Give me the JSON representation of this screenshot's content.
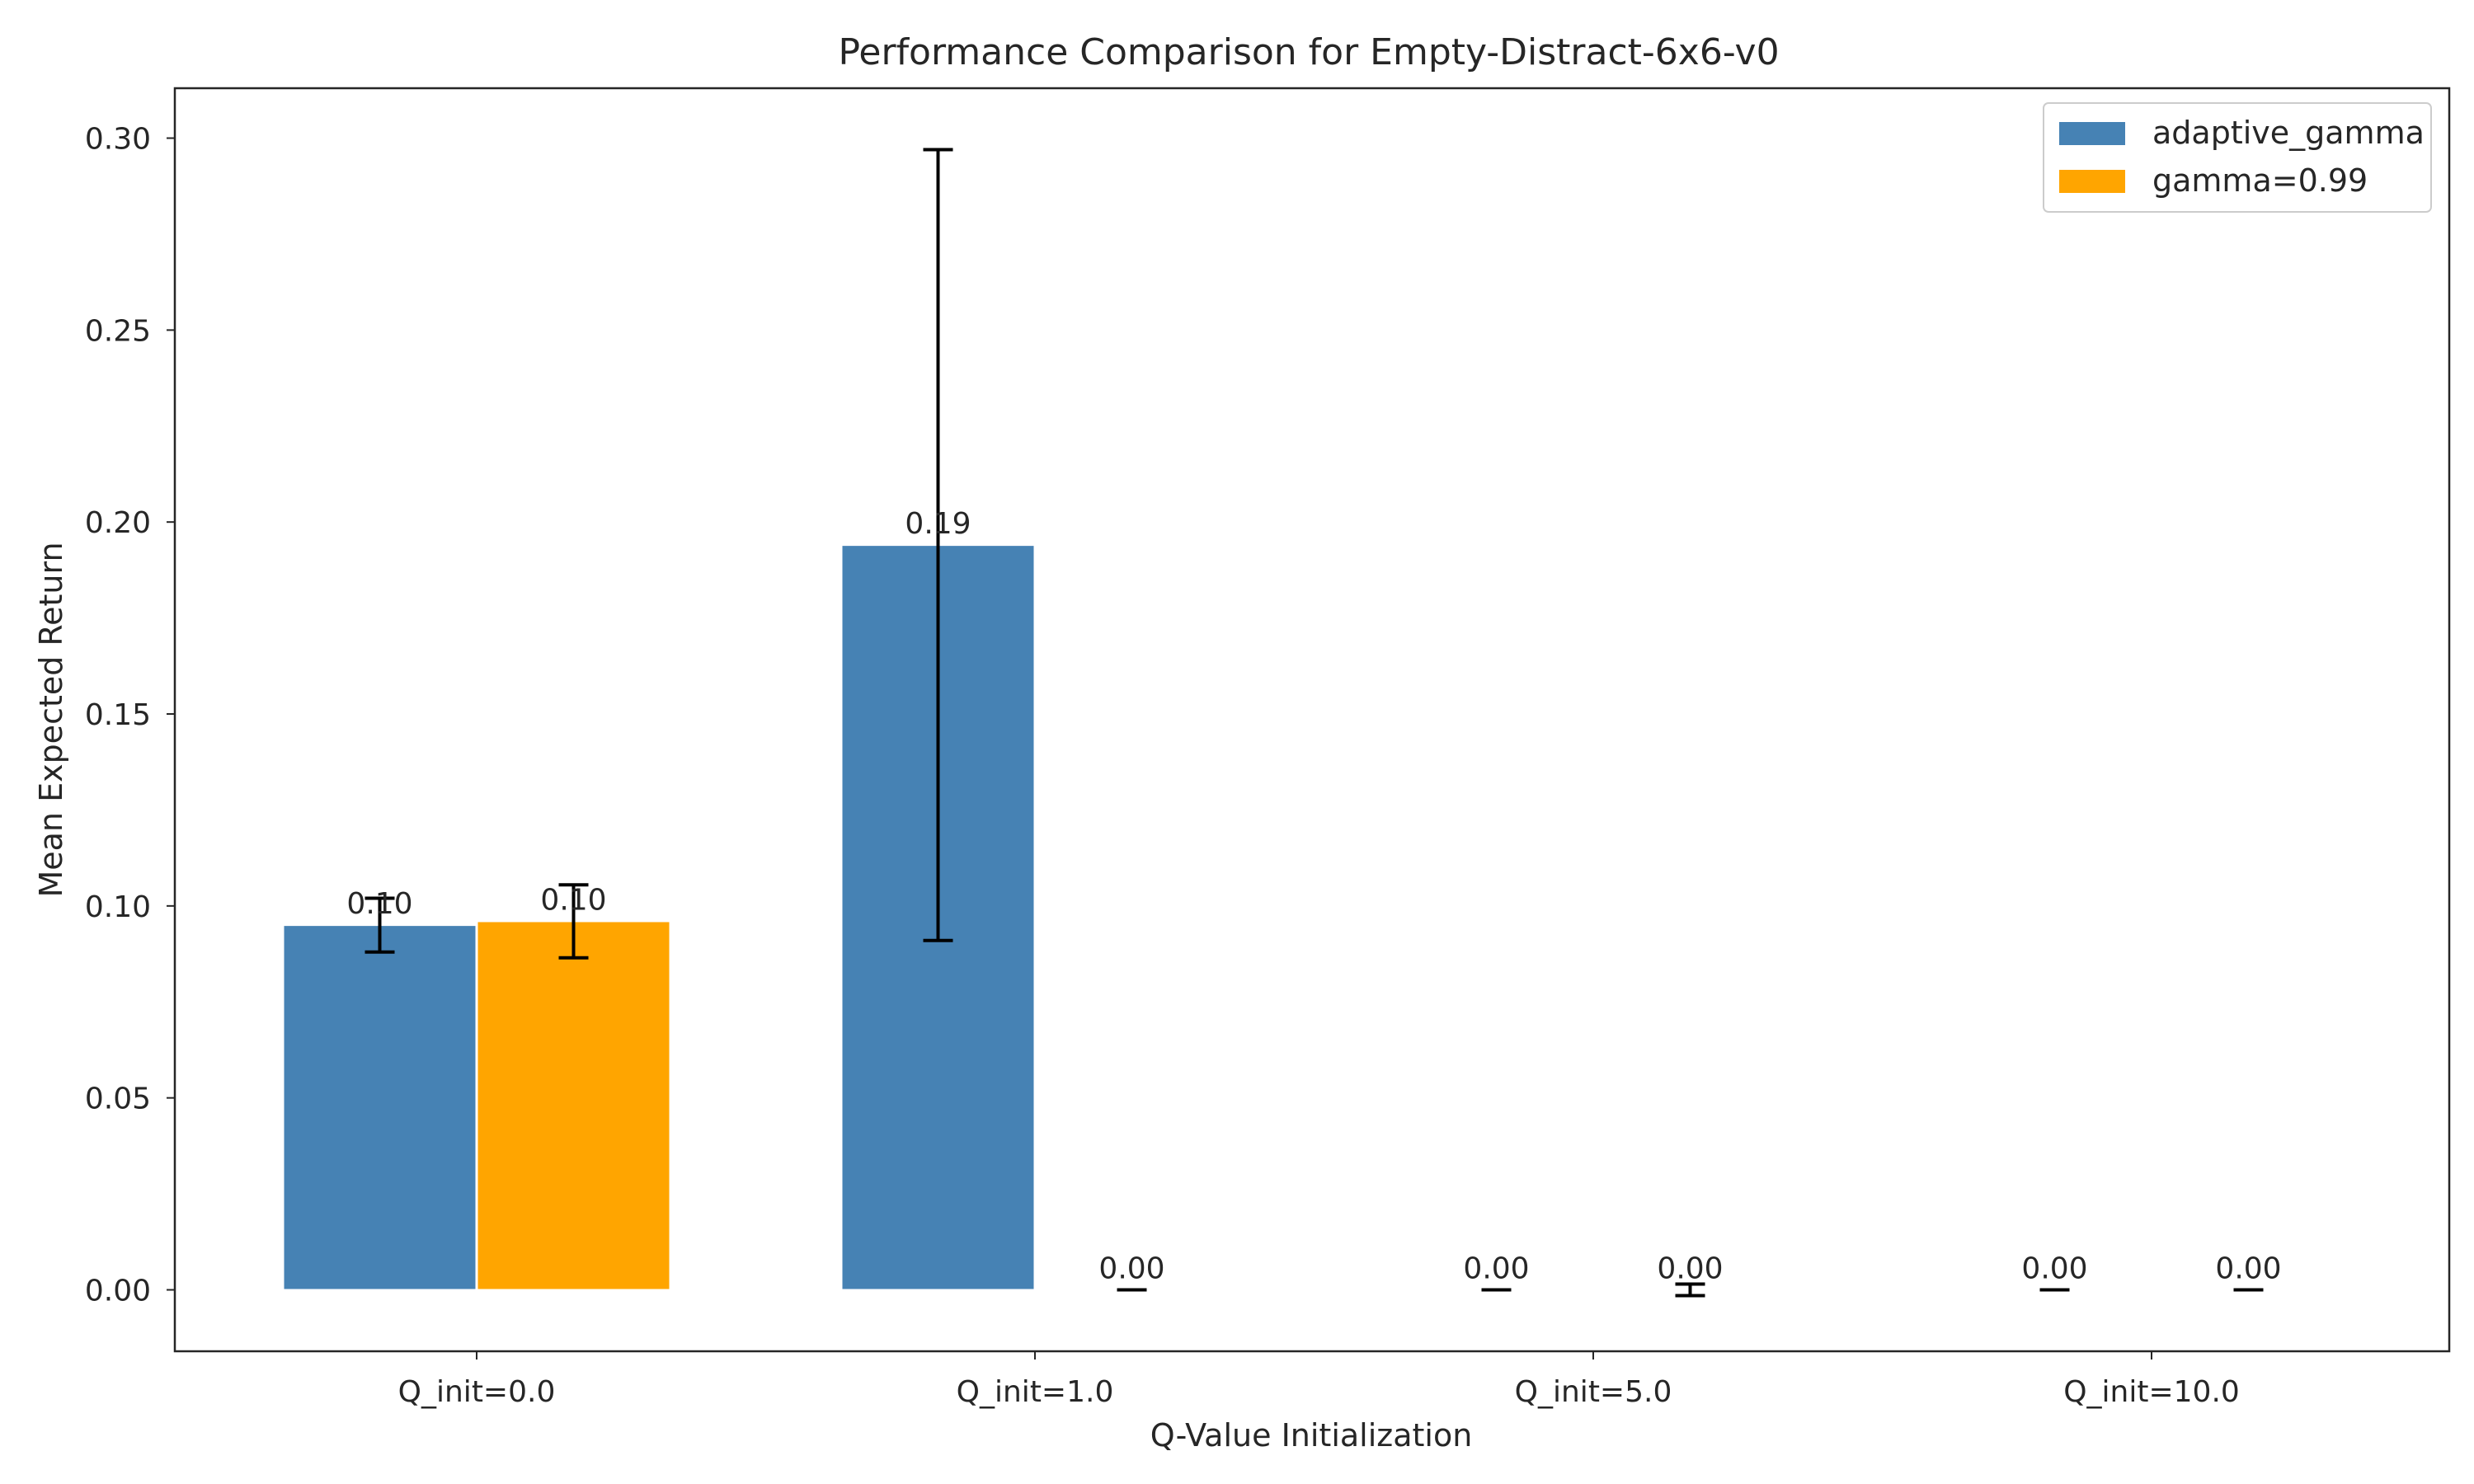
{
  "chart_data": {
    "type": "bar",
    "title": "Performance Comparison for Empty-Distract-6x6-v0",
    "xlabel": "Q-Value Initialization",
    "ylabel": "Mean Expected Return",
    "categories": [
      "Q_init=0.0",
      "Q_init=1.0",
      "Q_init=5.0",
      "Q_init=10.0"
    ],
    "ylim": [
      -0.016,
      0.313
    ],
    "yticks": [
      0.0,
      0.05,
      0.1,
      0.15,
      0.2,
      0.25,
      0.3
    ],
    "ytick_labels": [
      "0.00",
      "0.05",
      "0.10",
      "0.15",
      "0.20",
      "0.25",
      "0.30"
    ],
    "series": [
      {
        "name": "adaptive_gamma",
        "color": "#4682b4",
        "values": [
          0.095,
          0.194,
          0.0,
          0.0
        ],
        "errors": [
          0.007,
          0.103,
          0.0,
          0.0
        ],
        "labels": [
          "0.10",
          "0.19",
          "0.00",
          "0.00"
        ]
      },
      {
        "name": "gamma=0.99",
        "color": "#ffa500",
        "values": [
          0.096,
          0.0,
          0.0,
          0.0
        ],
        "errors": [
          0.0095,
          0.0,
          0.0015,
          0.0
        ],
        "labels": [
          "0.10",
          "0.00",
          "0.00",
          "0.00"
        ]
      }
    ],
    "legend_position": "top-right",
    "grid": false
  }
}
